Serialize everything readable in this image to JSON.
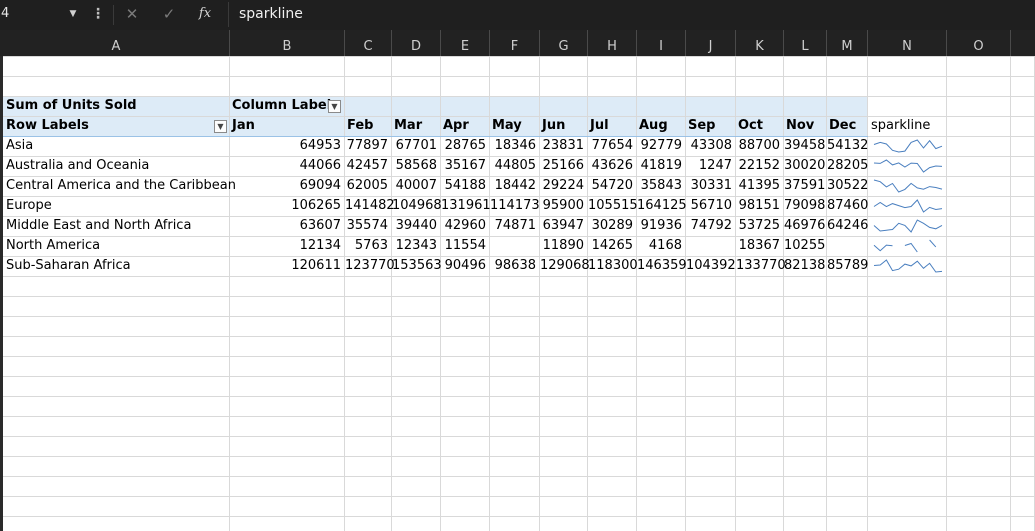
{
  "formula_bar": {
    "name_box": "4",
    "dropdown_icon": "chevron-down-icon",
    "more_icon": "vertical-dots-icon",
    "cancel_icon": "x-icon",
    "enter_icon": "check-icon",
    "fx_icon": "function-icon",
    "fx_label": "fx",
    "formula": "sparkline"
  },
  "columns": [
    "A",
    "B",
    "C",
    "D",
    "E",
    "F",
    "G",
    "H",
    "I",
    "J",
    "K",
    "L",
    "M",
    "N",
    "O"
  ],
  "pivot": {
    "values_label": "Sum of Units Sold",
    "column_labels": "Column Labels",
    "row_labels": "Row Labels",
    "months": [
      "Jan",
      "Feb",
      "Mar",
      "Apr",
      "May",
      "Jun",
      "Jul",
      "Aug",
      "Sep",
      "Oct",
      "Nov",
      "Dec"
    ],
    "sparkline_header": "sparkline",
    "rows": [
      {
        "region": "Asia",
        "values": [
          "64953",
          "77897",
          "67701",
          "28765",
          "18346",
          "23831",
          "77654",
          "92779",
          "43308",
          "88700",
          "39458",
          "54132"
        ]
      },
      {
        "region": "Australia and Oceania",
        "values": [
          "44066",
          "42457",
          "58568",
          "35167",
          "44805",
          "25166",
          "43626",
          "41819",
          "1247",
          "22152",
          "30020",
          "28205"
        ]
      },
      {
        "region": "Central America and the Caribbean",
        "values": [
          "69094",
          "62005",
          "40007",
          "54188",
          "18442",
          "29224",
          "54720",
          "35843",
          "30331",
          "41395",
          "37591",
          "30522"
        ]
      },
      {
        "region": "Europe",
        "values": [
          "106265",
          "141482",
          "104968",
          "131961",
          "114173",
          "95900",
          "105515",
          "164125",
          "56710",
          "98151",
          "79098",
          "87460"
        ]
      },
      {
        "region": "Middle East and North Africa",
        "values": [
          "63607",
          "35574",
          "39440",
          "42960",
          "74871",
          "63947",
          "30289",
          "91936",
          "74792",
          "53725",
          "46976",
          "64246"
        ]
      },
      {
        "region": "North America",
        "values": [
          "12134",
          "5763",
          "12343",
          "11554",
          "",
          "11890",
          "14265",
          "4168",
          "",
          "18367",
          "10255",
          ""
        ]
      },
      {
        "region": "Sub-Saharan Africa",
        "values": [
          "120611",
          "123770",
          "153563",
          "90496",
          "98638",
          "129068",
          "118300",
          "146359",
          "104392",
          "133770",
          "82138",
          "85789"
        ]
      }
    ]
  },
  "colors": {
    "chrome": "#1f1f1f",
    "header_band": "#ddebf7",
    "sparkline": "#4a7fbf"
  }
}
